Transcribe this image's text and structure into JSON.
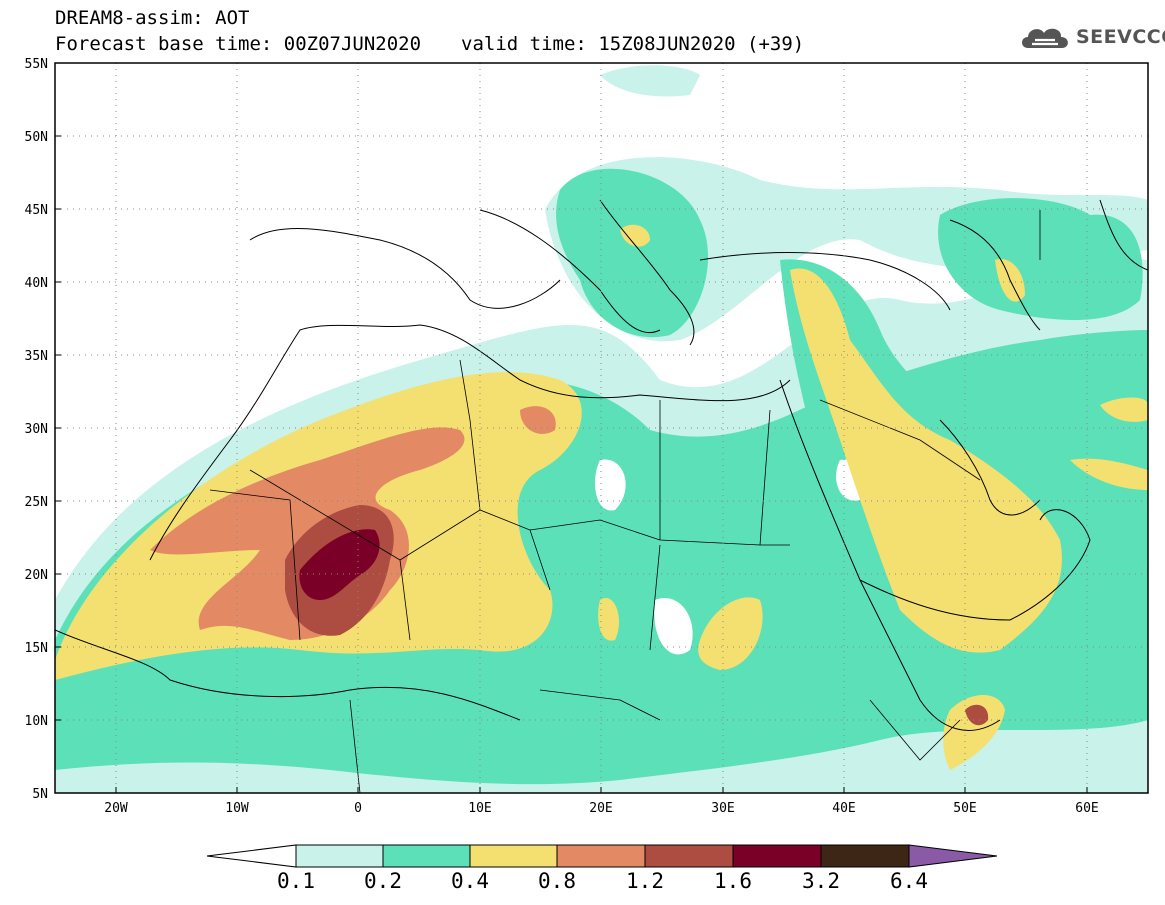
{
  "title": {
    "line1": "DREAM8-assim: AOT",
    "line2_left": "Forecast base time: 00Z07JUN2020",
    "line2_right": "valid time: 15Z08JUN2020 (+39)"
  },
  "logo": {
    "text": "SEEVCCC",
    "icon": "cloud-icon"
  },
  "map": {
    "lat_labels": [
      "55N",
      "50N",
      "45N",
      "40N",
      "35N",
      "30N",
      "25N",
      "20N",
      "15N",
      "10N",
      "5N"
    ],
    "lon_labels": [
      "20W",
      "10W",
      "0",
      "10E",
      "20E",
      "30E",
      "40E",
      "50E",
      "60E"
    ],
    "lat_range": [
      5,
      55
    ],
    "lon_range": [
      -25,
      65
    ],
    "grid": "dotted"
  },
  "colorbar": {
    "labels": [
      "0.1",
      "0.2",
      "0.4",
      "0.8",
      "1.2",
      "1.6",
      "3.2",
      "6.4"
    ],
    "colors": [
      "#ffffff",
      "#c8f2ea",
      "#5ce0b8",
      "#f3e070",
      "#e38a65",
      "#ad4c40",
      "#7a0028",
      "#3e2616",
      "#8a5aa6"
    ]
  }
}
